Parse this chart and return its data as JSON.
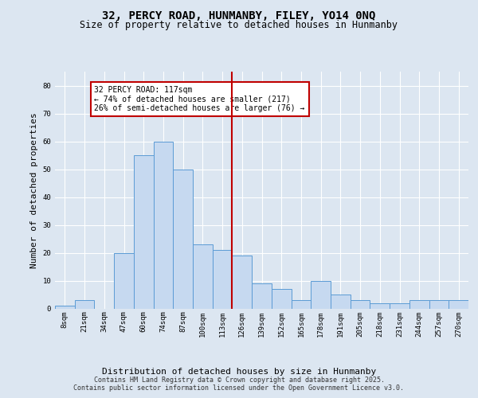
{
  "title_line1": "32, PERCY ROAD, HUNMANBY, FILEY, YO14 0NQ",
  "title_line2": "Size of property relative to detached houses in Hunmanby",
  "xlabel": "Distribution of detached houses by size in Hunmanby",
  "ylabel": "Number of detached properties",
  "footer_line1": "Contains HM Land Registry data © Crown copyright and database right 2025.",
  "footer_line2": "Contains public sector information licensed under the Open Government Licence v3.0.",
  "annotation_line1": "32 PERCY ROAD: 117sqm",
  "annotation_line2": "← 74% of detached houses are smaller (217)",
  "annotation_line3": "26% of semi-detached houses are larger (76) →",
  "bar_labels": [
    "8sqm",
    "21sqm",
    "34sqm",
    "47sqm",
    "60sqm",
    "74sqm",
    "87sqm",
    "100sqm",
    "113sqm",
    "126sqm",
    "139sqm",
    "152sqm",
    "165sqm",
    "178sqm",
    "191sqm",
    "205sqm",
    "218sqm",
    "231sqm",
    "244sqm",
    "257sqm",
    "270sqm"
  ],
  "bar_values": [
    1,
    3,
    0,
    20,
    55,
    60,
    50,
    23,
    21,
    19,
    9,
    7,
    3,
    10,
    5,
    3,
    2,
    2,
    3,
    3,
    3
  ],
  "bar_color": "#c6d9f0",
  "bar_edge_color": "#5b9bd5",
  "vline_color": "#c00000",
  "annotation_box_color": "#c00000",
  "background_color": "#dce6f1",
  "ylim": [
    0,
    85
  ],
  "yticks": [
    0,
    10,
    20,
    30,
    40,
    50,
    60,
    70,
    80
  ],
  "grid_color": "#ffffff",
  "title_fontsize": 10,
  "subtitle_fontsize": 8.5,
  "ylabel_fontsize": 8,
  "xlabel_fontsize": 8,
  "tick_fontsize": 6.5,
  "annotation_fontsize": 7,
  "footer_fontsize": 6
}
